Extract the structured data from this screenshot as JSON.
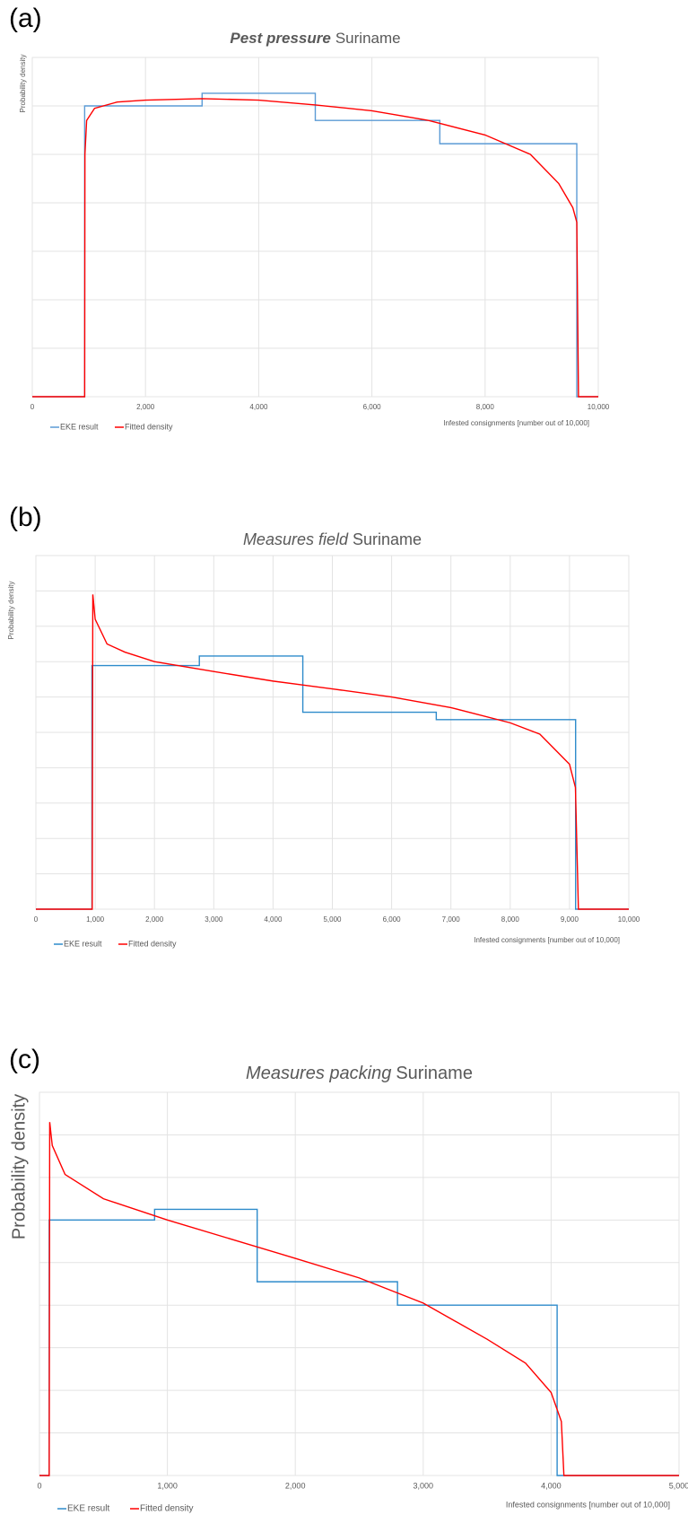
{
  "chart_data": [
    {
      "type": "line",
      "panel": "(a)",
      "title": [
        "Pest pressure",
        "Suriname"
      ],
      "title_style": "bold-italic",
      "x_label": "Infested consignments [number out of 10,000]",
      "y_label": "Probability density",
      "xlim": [
        0,
        10000
      ],
      "ylim": [
        0,
        7
      ],
      "xticks": [
        0,
        {
          "value": 2000,
          "label": "2,000"
        },
        {
          "value": 4000,
          "label": "4,000"
        },
        {
          "value": 6000,
          "label": "6,000"
        },
        {
          "value": 8000,
          "label": "8,000"
        },
        {
          "value": 10000,
          "label": "10,000"
        }
      ],
      "yticks": [
        1,
        2,
        3,
        4,
        5,
        6,
        7
      ],
      "grid": true,
      "series": [
        {
          "name": "EKE result",
          "color": "#5b9bd5",
          "x": [
            0,
            925,
            925,
            3000,
            3000,
            5000,
            5000,
            7200,
            7200,
            9620,
            9620,
            10000
          ],
          "values": [
            0,
            0,
            6.0,
            6.0,
            6.26,
            6.26,
            5.7,
            5.7,
            5.22,
            5.22,
            0,
            0
          ]
        },
        {
          "name": "Fitted density",
          "color": "#ff0000",
          "x": [
            0,
            925,
            930,
            960,
            1100,
            1500,
            2000,
            3000,
            4000,
            5000,
            6000,
            7000,
            8000,
            8800,
            9300,
            9550,
            9620,
            9650,
            10000
          ],
          "values": [
            0,
            0,
            5.0,
            5.7,
            5.95,
            6.08,
            6.12,
            6.15,
            6.12,
            6.02,
            5.9,
            5.7,
            5.4,
            5.0,
            4.4,
            3.9,
            3.6,
            0,
            0
          ]
        }
      ]
    },
    {
      "type": "line",
      "panel": "(b)",
      "title": [
        "Measures field",
        "Suriname"
      ],
      "title_style": "italic",
      "x_label": "Infested consignments [number out of 10,000]",
      "y_label": "Probability density",
      "xlim": [
        0,
        10000
      ],
      "ylim": [
        0,
        10
      ],
      "xticks": [
        0,
        {
          "value": 1000,
          "label": "1,000"
        },
        {
          "value": 2000,
          "label": "2,000"
        },
        {
          "value": 3000,
          "label": "3,000"
        },
        {
          "value": 4000,
          "label": "4,000"
        },
        {
          "value": 5000,
          "label": "5,000"
        },
        {
          "value": 6000,
          "label": "6,000"
        },
        {
          "value": 7000,
          "label": "7,000"
        },
        {
          "value": 8000,
          "label": "8,000"
        },
        {
          "value": 9000,
          "label": "9,000"
        },
        {
          "value": 10000,
          "label": "10,000"
        }
      ],
      "yticks": [
        1,
        2,
        3,
        4,
        5,
        6,
        7,
        8,
        9,
        10
      ],
      "grid": true,
      "series": [
        {
          "name": "EKE result",
          "color": "#2e8bcb",
          "x": [
            0,
            946,
            946,
            2757,
            2757,
            4502,
            4502,
            6753,
            6753,
            9103,
            9103,
            10000
          ],
          "values": [
            0,
            0,
            6.89,
            6.89,
            7.16,
            7.16,
            5.57,
            5.57,
            5.36,
            5.36,
            0,
            0
          ]
        },
        {
          "name": "Fitted density",
          "color": "#ff0000",
          "x": [
            0,
            950,
            960,
            1000,
            1200,
            1500,
            2000,
            3000,
            4000,
            5000,
            6000,
            7000,
            8000,
            8500,
            9000,
            9100,
            9150,
            10000
          ],
          "values": [
            0,
            0,
            8.9,
            8.2,
            7.5,
            7.27,
            7.0,
            6.72,
            6.45,
            6.23,
            6.0,
            5.7,
            5.27,
            4.95,
            4.1,
            3.44,
            0,
            0
          ]
        }
      ]
    },
    {
      "type": "line",
      "panel": "(c)",
      "title": [
        "Measures packing",
        "Suriname"
      ],
      "title_style": "italic",
      "x_label": "Infested consignments [number out of 10,000]",
      "y_label": "Probability density",
      "xlim": [
        0,
        5000
      ],
      "ylim": [
        0,
        9
      ],
      "xticks": [
        0,
        {
          "value": 1000,
          "label": "1,000"
        },
        {
          "value": 2000,
          "label": "2,000"
        },
        {
          "value": 3000,
          "label": "3,000"
        },
        {
          "value": 4000,
          "label": "4,000"
        },
        {
          "value": 5000,
          "label": "5,000"
        }
      ],
      "yticks": [
        1,
        2,
        3,
        4,
        5,
        6,
        7,
        8,
        9
      ],
      "grid": true,
      "series": [
        {
          "name": "EKE result",
          "color": "#2e8bcb",
          "x": [
            0,
            76,
            76,
            900,
            900,
            1702,
            1702,
            2799,
            2799,
            4047,
            4047,
            5000
          ],
          "values": [
            0,
            0,
            6.0,
            6.0,
            6.25,
            6.25,
            4.55,
            4.55,
            4.0,
            4.0,
            0,
            0
          ]
        },
        {
          "name": "Fitted density",
          "color": "#ff0000",
          "x": [
            0,
            76,
            80,
            100,
            200,
            500,
            1000,
            1500,
            2000,
            2500,
            3000,
            3500,
            3800,
            4000,
            4080,
            4100,
            5000
          ],
          "values": [
            0,
            0,
            8.3,
            7.75,
            7.07,
            6.5,
            6.0,
            5.55,
            5.1,
            4.64,
            4.05,
            3.2,
            2.64,
            1.95,
            1.27,
            0,
            0
          ]
        }
      ]
    }
  ]
}
